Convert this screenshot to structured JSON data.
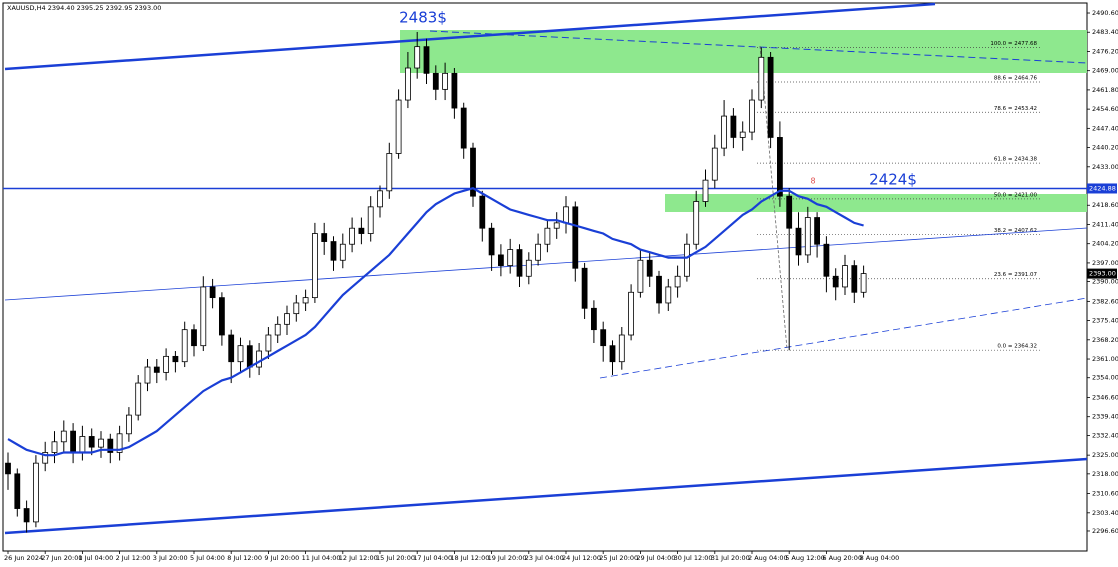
{
  "chart_data": {
    "type": "candlestick",
    "header": "XAUUSD,H4  2394.40 2395.25 2392.95 2393.00",
    "categories": [
      "26 Jun 2024",
      null,
      null,
      null,
      "27 Jun 20:00",
      null,
      null,
      null,
      "1 Jul 04:00",
      null,
      null,
      null,
      "2 Jul 12:00",
      null,
      null,
      null,
      "3 Jul 20:00",
      null,
      null,
      null,
      "5 Jul 04:00",
      null,
      null,
      null,
      "8 Jul 12:00",
      null,
      null,
      null,
      "9 Jul 20:00",
      null,
      null,
      null,
      "11 Jul 04:00",
      null,
      null,
      null,
      "12 Jul 12:00",
      null,
      null,
      null,
      "15 Jul 20:00",
      null,
      null,
      null,
      "17 Jul 04:00",
      null,
      null,
      null,
      "18 Jul 12:00",
      null,
      null,
      null,
      "19 Jul 20:00",
      null,
      null,
      null,
      "23 Jul 04:00",
      null,
      null,
      null,
      "24 Jul 12:00",
      null,
      null,
      null,
      "25 Jul 20:00",
      null,
      null,
      null,
      "29 Jul 04:00",
      null,
      null,
      null,
      "30 Jul 12:00",
      null,
      null,
      null,
      "31 Jul 20:00",
      null,
      null,
      null,
      "2 Aug 04:00",
      null,
      null,
      null,
      "5 Aug 12:00",
      null,
      null,
      null,
      "6 Aug 20:00",
      null,
      null,
      null,
      "8 Aug 04:00"
    ],
    "open": [
      2322,
      2318,
      2305,
      2300,
      2322,
      2326,
      2330,
      2334,
      2326,
      2332,
      2328,
      2331,
      2326,
      2333,
      2340,
      2352,
      2358,
      2356,
      2362,
      2360,
      2372,
      2366,
      2388,
      2384,
      2370,
      2360,
      2366,
      2358,
      2364,
      2370,
      2374,
      2378,
      2382,
      2384,
      2408,
      2405,
      2398,
      2404,
      2410,
      2408,
      2418,
      2424,
      2438,
      2458,
      2470,
      2478,
      2468,
      2462,
      2468,
      2455,
      2440,
      2422,
      2410,
      2400,
      2396,
      2402,
      2392,
      2398,
      2404,
      2410,
      2412,
      2418,
      2395,
      2380,
      2372,
      2366,
      2360,
      2370,
      2386,
      2398,
      2392,
      2382,
      2388,
      2392,
      2404,
      2420,
      2428,
      2440,
      2452,
      2444,
      2446,
      2458,
      2474,
      2444,
      2422,
      2410,
      2400,
      2414,
      2404,
      2392,
      2388,
      2396,
      2386
    ],
    "high": [
      2326,
      2320,
      2308,
      2325,
      2330,
      2334,
      2338,
      2337,
      2336,
      2335,
      2334,
      2333,
      2336,
      2343,
      2355,
      2361,
      2361,
      2365,
      2364,
      2375,
      2374,
      2392,
      2391,
      2386,
      2372,
      2369,
      2368,
      2367,
      2373,
      2377,
      2381,
      2385,
      2387,
      2412,
      2412,
      2407,
      2408,
      2414,
      2414,
      2422,
      2426,
      2442,
      2462,
      2476,
      2483.5,
      2481,
      2471,
      2472,
      2470,
      2457,
      2442,
      2424,
      2412,
      2404,
      2406,
      2404,
      2401,
      2408,
      2413,
      2416,
      2422,
      2420,
      2397,
      2383,
      2375,
      2368,
      2373,
      2389,
      2402,
      2401,
      2394,
      2391,
      2396,
      2408,
      2424,
      2432,
      2445,
      2458,
      2455,
      2450,
      2462,
      2477.7,
      2476,
      2450,
      2425,
      2416,
      2418,
      2416,
      2407,
      2395,
      2400,
      2398,
      2396
    ],
    "low": [
      2312,
      2302,
      2296,
      2298,
      2319,
      2322,
      2326,
      2322,
      2323,
      2325,
      2324,
      2322,
      2323,
      2330,
      2338,
      2349,
      2352,
      2353,
      2356,
      2358,
      2362,
      2364,
      2380,
      2366,
      2352,
      2356,
      2354,
      2355,
      2361,
      2367,
      2370,
      2375,
      2379,
      2382,
      2400,
      2394,
      2395,
      2401,
      2404,
      2405,
      2414,
      2421,
      2436,
      2455,
      2466,
      2464,
      2458,
      2458,
      2451,
      2436,
      2418,
      2405,
      2394,
      2392,
      2393,
      2388,
      2389,
      2396,
      2401,
      2406,
      2408,
      2390,
      2376,
      2367,
      2360,
      2355,
      2357,
      2368,
      2384,
      2388,
      2378,
      2379,
      2384,
      2390,
      2402,
      2418,
      2425,
      2437,
      2440,
      2439,
      2443,
      2455,
      2440,
      2418,
      2364.3,
      2396,
      2397,
      2399,
      2386,
      2383,
      2385,
      2382,
      2384
    ],
    "close": [
      2318,
      2305,
      2300,
      2322,
      2326,
      2330,
      2334,
      2326,
      2332,
      2328,
      2331,
      2326,
      2333,
      2340,
      2352,
      2358,
      2356,
      2362,
      2360,
      2372,
      2366,
      2388,
      2384,
      2370,
      2360,
      2366,
      2358,
      2364,
      2370,
      2374,
      2378,
      2382,
      2384,
      2408,
      2405,
      2398,
      2404,
      2410,
      2408,
      2418,
      2424,
      2438,
      2458,
      2470,
      2478,
      2468,
      2462,
      2468,
      2455,
      2440,
      2422,
      2410,
      2400,
      2396,
      2402,
      2392,
      2398,
      2404,
      2410,
      2412,
      2418,
      2395,
      2380,
      2372,
      2366,
      2360,
      2370,
      2386,
      2398,
      2392,
      2382,
      2388,
      2392,
      2404,
      2420,
      2428,
      2440,
      2452,
      2444,
      2446,
      2458,
      2474,
      2444,
      2422,
      2410,
      2400,
      2414,
      2404,
      2392,
      2388,
      2396,
      2386,
      2393
    ],
    "ma": {
      "color": "#1a3fd6",
      "values": [
        2331,
        2329,
        2327,
        2326,
        2325,
        2325,
        2326,
        2326,
        2326,
        2326,
        2327,
        2327,
        2327,
        2328,
        2330,
        2332,
        2334,
        2337,
        2340,
        2343,
        2346,
        2349,
        2351,
        2353,
        2354,
        2356,
        2358,
        2360,
        2362,
        2364,
        2366,
        2368,
        2370,
        2373,
        2377,
        2381,
        2385,
        2388,
        2391,
        2394,
        2397,
        2400,
        2404,
        2408,
        2412,
        2416,
        2419,
        2421,
        2423,
        2424,
        2425,
        2423,
        2421,
        2419,
        2417,
        2416,
        2415,
        2414,
        2413,
        2413,
        2412,
        2411,
        2410,
        2409,
        2408,
        2406,
        2405,
        2404,
        2402,
        2401,
        2400,
        2399,
        2399,
        2399,
        2401,
        2403,
        2406,
        2409,
        2412,
        2415,
        2417,
        2420,
        2422,
        2424,
        2424,
        2422,
        2421,
        2419,
        2418,
        2416,
        2414,
        2412,
        2411
      ]
    },
    "ylim": [
      2289.1,
      2494.35
    ],
    "yticks": [
      {
        "value": 2490.6,
        "label": "2490.60"
      },
      {
        "value": 2483.4,
        "label": "2483.40"
      },
      {
        "value": 2476.2,
        "label": "2476.20"
      },
      {
        "value": 2469.0,
        "label": "2469.00"
      },
      {
        "value": 2461.8,
        "label": "2461.80"
      },
      {
        "value": 2454.6,
        "label": "2454.60"
      },
      {
        "value": 2447.4,
        "label": "2447.40"
      },
      {
        "value": 2440.2,
        "label": "2440.20"
      },
      {
        "value": 2433.0,
        "label": "2433.00"
      },
      {
        "value": 2418.6,
        "label": "2418.60"
      },
      {
        "value": 2411.4,
        "label": "2411.40"
      },
      {
        "value": 2404.2,
        "label": "2404.20"
      },
      {
        "value": 2397.0,
        "label": "2397.00"
      },
      {
        "value": 2390.0,
        "label": "2390.00"
      },
      {
        "value": 2382.6,
        "label": "2382.60"
      },
      {
        "value": 2375.4,
        "label": "2375.40"
      },
      {
        "value": 2368.2,
        "label": "2368.20"
      },
      {
        "value": 2361.0,
        "label": "2361.00"
      },
      {
        "value": 2354.0,
        "label": "2354.00"
      },
      {
        "value": 2346.6,
        "label": "2346.60"
      },
      {
        "value": 2339.4,
        "label": "2339.40"
      },
      {
        "value": 2332.4,
        "label": "2332.40"
      },
      {
        "value": 2325.0,
        "label": "2325.00"
      },
      {
        "value": 2318.0,
        "label": "2318.00"
      },
      {
        "value": 2310.6,
        "label": "2310.60"
      },
      {
        "value": 2303.4,
        "label": "2303.40"
      },
      {
        "value": 2296.6,
        "label": "2296.60"
      }
    ],
    "fib_levels": [
      {
        "value": 2477.68,
        "label": "100.0 = 2477.68"
      },
      {
        "value": 2464.76,
        "label": "88.6 = 2464.76"
      },
      {
        "value": 2453.42,
        "label": "78.6 = 2453.42"
      },
      {
        "value": 2434.38,
        "label": "61.8 = 2434.38"
      },
      {
        "value": 2421.0,
        "label": "50.0 = 2421.00"
      },
      {
        "value": 2407.62,
        "label": "38.2 = 2407.62"
      },
      {
        "value": 2391.07,
        "label": "23.6 = 2391.07"
      },
      {
        "value": 2364.32,
        "label": "0.0 = 2364.32"
      }
    ],
    "price_line": {
      "value": 2424.88,
      "label": "2424.88",
      "color": "#1a3fd6"
    },
    "current_price": {
      "value": 2393.0,
      "label": "2393.00"
    },
    "annotations": [
      "2483$",
      "2424$",
      "8"
    ]
  }
}
